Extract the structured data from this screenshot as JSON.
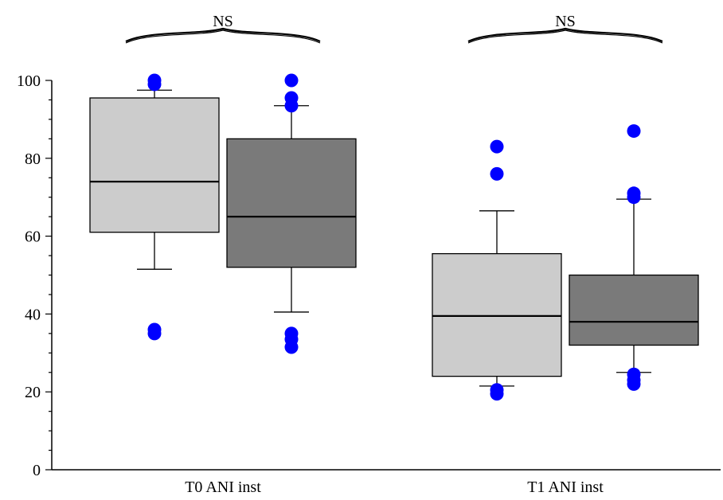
{
  "chart_data": {
    "type": "boxplot",
    "title": "",
    "xlabel": "",
    "ylabel": "",
    "ylim": [
      0,
      100
    ],
    "yticks": [
      0,
      20,
      40,
      60,
      80,
      100
    ],
    "grid": false,
    "legend": "none",
    "categories": [
      "T0 ANI inst",
      "T1 ANI inst"
    ],
    "series": [
      {
        "color": "#cccccc",
        "boxes": [
          {
            "q1": 61,
            "median": 74,
            "q3": 95.5,
            "whisker_low": 51.5,
            "whisker_high": 97.5,
            "outliers": [
              35,
              36,
              99,
              100
            ]
          },
          {
            "q1": 24,
            "median": 39.5,
            "q3": 55.5,
            "whisker_low": 21.5,
            "whisker_high": 66.5,
            "outliers": [
              19.5,
              20.5,
              76,
              83
            ]
          }
        ]
      },
      {
        "color": "#7a7a7a",
        "boxes": [
          {
            "q1": 52,
            "median": 65,
            "q3": 85,
            "whisker_low": 40.5,
            "whisker_high": 93.5,
            "outliers": [
              31.5,
              33.5,
              35,
              93.5,
              95.5,
              100
            ]
          },
          {
            "q1": 32,
            "median": 38,
            "q3": 50,
            "whisker_low": 25,
            "whisker_high": 69.5,
            "outliers": [
              22,
              23,
              24.5,
              70,
              71,
              87
            ]
          }
        ]
      }
    ],
    "outlier_color": "#0000ff",
    "significance": [
      "NS",
      "NS"
    ]
  }
}
